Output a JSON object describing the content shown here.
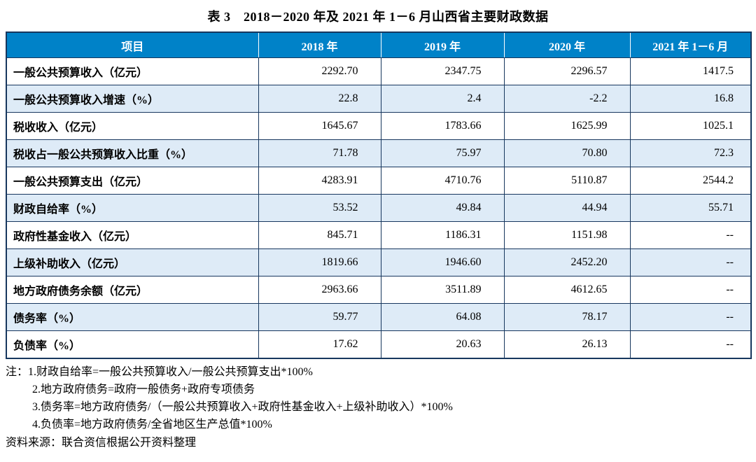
{
  "page": {
    "title": "表 3　2018－2020 年及 2021 年 1－6 月山西省主要财政数据"
  },
  "table": {
    "headers": [
      "项目",
      "2018 年",
      "2019 年",
      "2020 年",
      "2021 年 1－6 月"
    ],
    "rows": [
      {
        "label": "一般公共预算收入（亿元）",
        "values": [
          "2292.70",
          "2347.75",
          "2296.57",
          "1417.5"
        ]
      },
      {
        "label": "一般公共预算收入增速（%）",
        "values": [
          "22.8",
          "2.4",
          "-2.2",
          "16.8"
        ]
      },
      {
        "label": "税收收入（亿元）",
        "values": [
          "1645.67",
          "1783.66",
          "1625.99",
          "1025.1"
        ]
      },
      {
        "label": "税收占一般公共预算收入比重（%）",
        "values": [
          "71.78",
          "75.97",
          "70.80",
          "72.3"
        ]
      },
      {
        "label": "一般公共预算支出（亿元）",
        "values": [
          "4283.91",
          "4710.76",
          "5110.87",
          "2544.2"
        ]
      },
      {
        "label": "财政自给率（%）",
        "values": [
          "53.52",
          "49.84",
          "44.94",
          "55.71"
        ]
      },
      {
        "label": "政府性基金收入（亿元）",
        "values": [
          "845.71",
          "1186.31",
          "1151.98",
          "--"
        ]
      },
      {
        "label": "上级补助收入（亿元）",
        "values": [
          "1819.66",
          "1946.60",
          "2452.20",
          "--"
        ]
      },
      {
        "label": "地方政府债务余额（亿元）",
        "values": [
          "2963.66",
          "3511.89",
          "4612.65",
          "--"
        ]
      },
      {
        "label": "债务率（%）",
        "values": [
          "59.77",
          "64.08",
          "78.17",
          "--"
        ]
      },
      {
        "label": "负债率（%）",
        "values": [
          "17.62",
          "20.63",
          "26.13",
          "--"
        ]
      }
    ]
  },
  "notes": [
    "注：1.财政自给率=一般公共预算收入/一般公共预算支出*100%",
    "2.地方政府债务=政府一般债务+政府专项债务",
    "3.债务率=地方政府债务/（一般公共预算收入+政府性基金收入+上级补助收入）*100%",
    "4.负债率=地方政府债务/全省地区生产总值*100%"
  ],
  "source": "资料来源：联合资信根据公开资料整理",
  "colors": {
    "header_bg": "#0082C8",
    "row_alt_bg": "#DEEBF7",
    "border": "#17375E",
    "header_text": "#ffffff"
  }
}
